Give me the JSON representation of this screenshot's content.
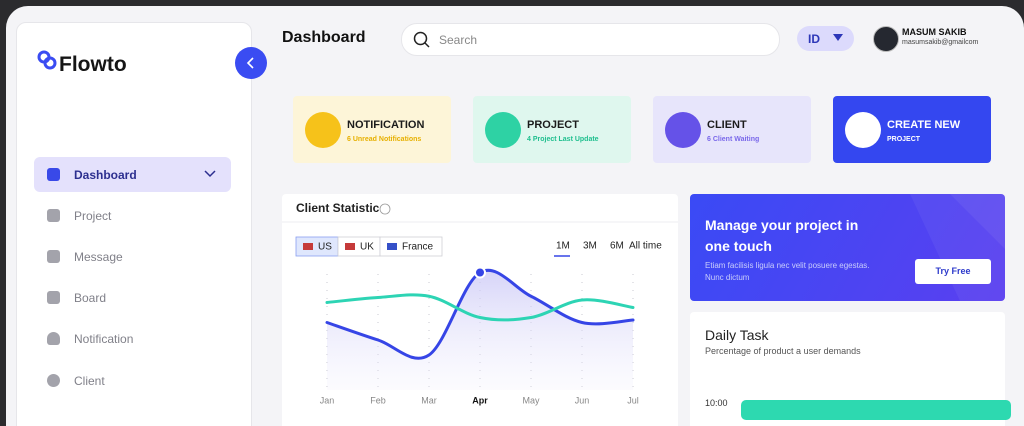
{
  "sidebar": {
    "brand": "Flowto",
    "nav": [
      "Dashboard",
      "Project",
      "Message",
      "Board",
      "Notification",
      "Client"
    ]
  },
  "header": {
    "title": "Dashboard",
    "search_placeholder": "Search",
    "language": "ID",
    "user": {
      "name": "MASUM SAKIB",
      "email": "masumsakib@gmailcom"
    }
  },
  "cards": [
    {
      "title": "NOTIFICATION",
      "subtitle": "6 Unread Notifications"
    },
    {
      "title": "PROJECT",
      "subtitle": "4 Project Last Update"
    },
    {
      "title": "CLIENT",
      "subtitle": "6 Client Waiting"
    },
    {
      "title": "CREATE NEW",
      "subtitle": "PROJECT"
    }
  ],
  "chart_data": {
    "type": "line",
    "title": "Client Statistic",
    "filters": [
      "US",
      "UK",
      "France"
    ],
    "periods": [
      "1M",
      "3M",
      "6M",
      "All time"
    ],
    "categories": [
      "Jan",
      "Feb",
      "Mar",
      "Apr",
      "May",
      "Jun",
      "Jul"
    ],
    "series": [
      {
        "color": "#3645e6",
        "values": [
          54,
          40,
          28,
          94,
          75,
          54,
          56
        ]
      },
      {
        "color": "#2dd4b4",
        "values": [
          70,
          74,
          75,
          58,
          58,
          72,
          66
        ]
      }
    ],
    "ylim": [
      0,
      100
    ]
  },
  "banner": {
    "title": [
      "Manage your project in",
      "one touch"
    ],
    "text": [
      "Etiam facilisis ligula nec velit posuere egestas.",
      "Nunc dictum"
    ],
    "button": "Try Free"
  },
  "daily_task": {
    "title": "Daily Task",
    "subtitle": "Percentage of product a user demands",
    "time": "10:00"
  }
}
